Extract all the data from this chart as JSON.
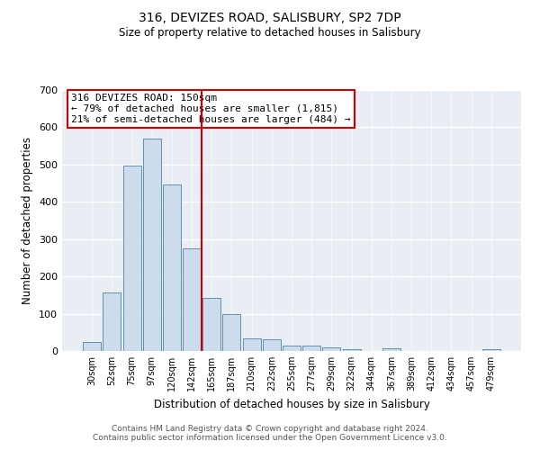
{
  "title1": "316, DEVIZES ROAD, SALISBURY, SP2 7DP",
  "title2": "Size of property relative to detached houses in Salisbury",
  "xlabel": "Distribution of detached houses by size in Salisbury",
  "ylabel": "Number of detached properties",
  "bar_labels": [
    "30sqm",
    "52sqm",
    "75sqm",
    "97sqm",
    "120sqm",
    "142sqm",
    "165sqm",
    "187sqm",
    "210sqm",
    "232sqm",
    "255sqm",
    "277sqm",
    "299sqm",
    "322sqm",
    "344sqm",
    "367sqm",
    "389sqm",
    "412sqm",
    "434sqm",
    "457sqm",
    "479sqm"
  ],
  "bar_values": [
    25,
    157,
    498,
    570,
    447,
    275,
    143,
    99,
    35,
    32,
    14,
    14,
    9,
    4,
    0,
    7,
    0,
    0,
    0,
    0,
    5
  ],
  "bar_color": "#ccdcec",
  "bar_edgecolor": "#6090b0",
  "vline_color": "#cc0000",
  "annotation_line1": "316 DEVIZES ROAD: 150sqm",
  "annotation_line2": "← 79% of detached houses are smaller (1,815)",
  "annotation_line3": "21% of semi-detached houses are larger (484) →",
  "annotation_box_edgecolor": "#cc0000",
  "ylim": [
    0,
    700
  ],
  "yticks": [
    0,
    100,
    200,
    300,
    400,
    500,
    600,
    700
  ],
  "background_color": "#e8eef4",
  "footer1": "Contains HM Land Registry data © Crown copyright and database right 2024.",
  "footer2": "Contains public sector information licensed under the Open Government Licence v3.0."
}
